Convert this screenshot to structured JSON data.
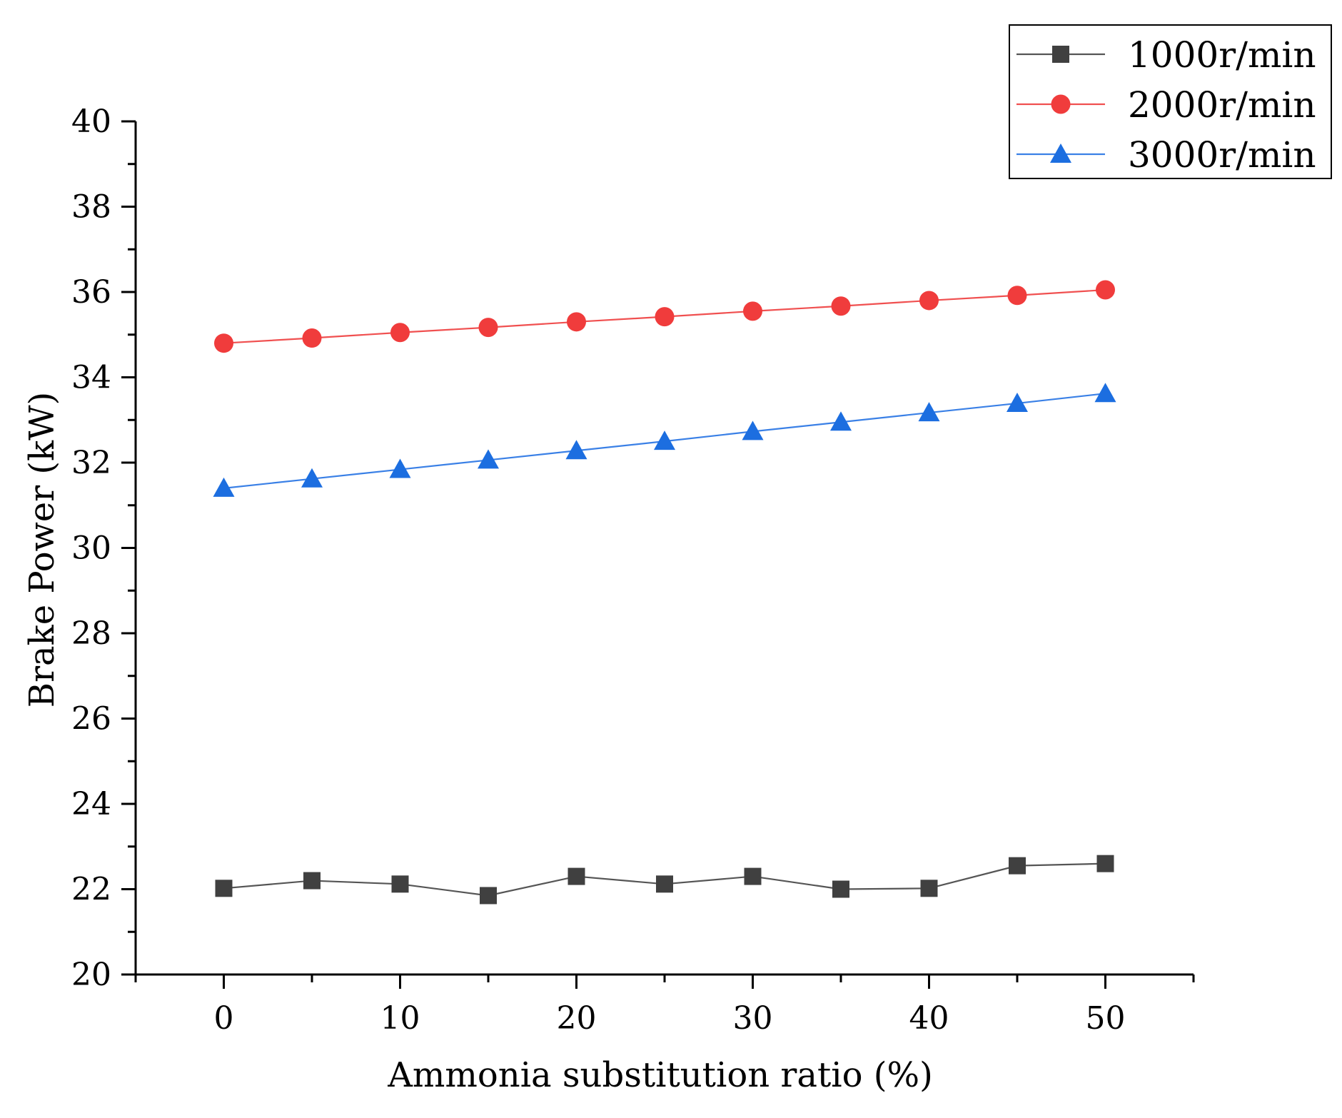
{
  "chart_data": {
    "type": "line",
    "title": "",
    "xlabel": "Ammonia substitution ratio (%)",
    "ylabel": "Brake Power (kW)",
    "xlim": [
      -5,
      55
    ],
    "ylim": [
      20,
      40
    ],
    "x_ticks": [
      0,
      10,
      20,
      30,
      40,
      50
    ],
    "x_minor_ticks": [
      5,
      15,
      25,
      35,
      45
    ],
    "y_ticks": [
      20,
      22,
      24,
      26,
      28,
      30,
      32,
      34,
      36,
      38,
      40
    ],
    "y_minor_ticks": [
      21,
      23,
      25,
      27,
      29,
      31,
      33,
      35,
      37,
      39
    ],
    "grid": false,
    "legend_position": "top-right",
    "x": [
      0,
      5,
      10,
      15,
      20,
      25,
      30,
      35,
      40,
      45,
      50
    ],
    "series": [
      {
        "name": "1000r/min",
        "marker": "square",
        "color": "#404040",
        "line_color": "#555555",
        "values": [
          22.02,
          22.2,
          22.12,
          21.85,
          22.3,
          22.12,
          22.3,
          22.0,
          22.02,
          22.55,
          22.6
        ]
      },
      {
        "name": "2000r/min",
        "marker": "circle",
        "color": "#f03c3c",
        "line_color": "#f05050",
        "values": [
          34.8,
          34.92,
          35.05,
          35.17,
          35.3,
          35.42,
          35.55,
          35.67,
          35.8,
          35.92,
          36.05
        ]
      },
      {
        "name": "3000r/min",
        "marker": "triangle",
        "color": "#1c6ee0",
        "line_color": "#3a80e6",
        "values": [
          31.4,
          31.62,
          31.84,
          32.06,
          32.28,
          32.5,
          32.73,
          32.95,
          33.17,
          33.39,
          33.62
        ]
      }
    ]
  }
}
